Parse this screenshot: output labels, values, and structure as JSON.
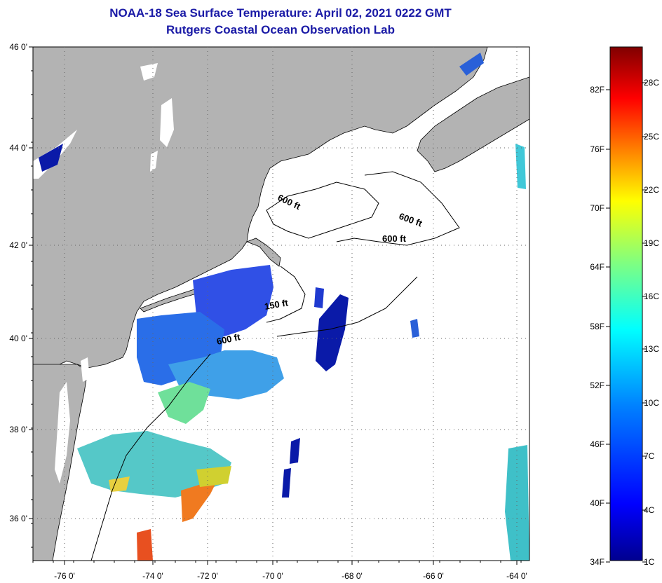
{
  "header": {
    "title": "NOAA-18 Sea Surface Temperature:  April 02, 2021 0222 GMT",
    "subtitle": "Rutgers Coastal Ocean Observation Lab"
  },
  "map": {
    "lat_ticks": [
      "46 0'",
      "44 0'",
      "42 0'",
      "40 0'",
      "38 0'",
      "36 0'"
    ],
    "lon_ticks": [
      "-76 0'",
      "-74 0'",
      "-72 0'",
      "-70 0'",
      "-68 0'",
      "-66 0'",
      "-64 0'"
    ],
    "isobath_labels": [
      "600 ft",
      "600 ft",
      "600 ft",
      "150 ft",
      "600 ft"
    ],
    "colors": {
      "land": "#b3b3b3",
      "ocean_no_data": "#ffffff",
      "coastline": "#000000"
    }
  },
  "colorbar": {
    "fahrenheit_labels": [
      "82F",
      "76F",
      "70F",
      "64F",
      "58F",
      "52F",
      "46F",
      "40F",
      "34F"
    ],
    "celsius_labels": [
      "28C",
      "25C",
      "22C",
      "19C",
      "16C",
      "13C",
      "10C",
      "7C",
      "4C",
      "1C"
    ],
    "gradient_colors": [
      "#00008f",
      "#0000ff",
      "#0080ff",
      "#00ffff",
      "#80ff80",
      "#ffff00",
      "#ff8000",
      "#ff0000",
      "#800000"
    ]
  }
}
